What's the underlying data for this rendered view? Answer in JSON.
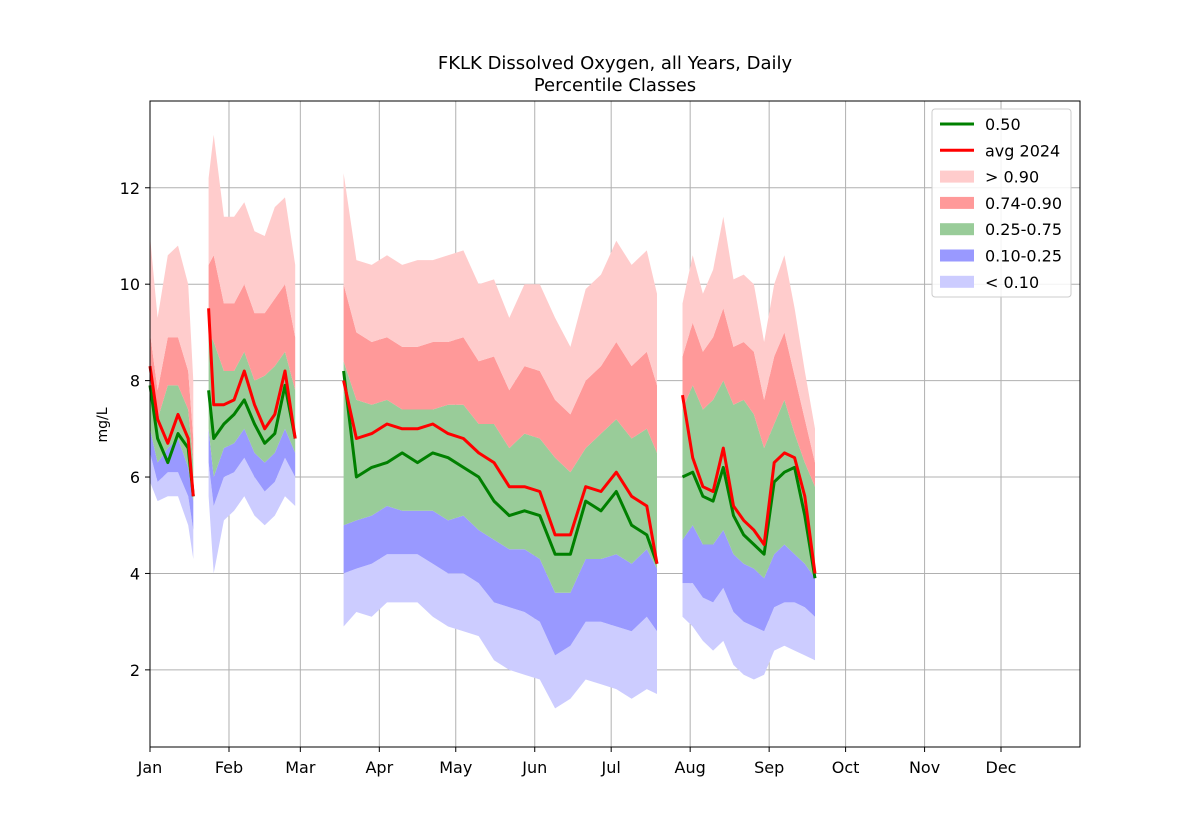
{
  "chart_data": {
    "type": "area",
    "title": "FKLK Dissolved Oxygen, all Years, Daily",
    "subtitle": "Percentile Classes",
    "xlabel": "",
    "ylabel": "mg/L",
    "x_unit": "day of year",
    "xlim": [
      1,
      366
    ],
    "ylim": [
      0.4,
      13.8
    ],
    "x_ticks": [
      {
        "label": "Jan",
        "day": 1
      },
      {
        "label": "Feb",
        "day": 32
      },
      {
        "label": "Mar",
        "day": 60
      },
      {
        "label": "Apr",
        "day": 91
      },
      {
        "label": "May",
        "day": 121
      },
      {
        "label": "Jun",
        "day": 152
      },
      {
        "label": "Jul",
        "day": 182
      },
      {
        "label": "Aug",
        "day": 213
      },
      {
        "label": "Sep",
        "day": 244
      },
      {
        "label": "Oct",
        "day": 274
      },
      {
        "label": "Nov",
        "day": 305
      },
      {
        "label": "Dec",
        "day": 335
      }
    ],
    "y_ticks": [
      2,
      4,
      6,
      8,
      10,
      12
    ],
    "grid": true,
    "legend_position": "top-right",
    "colors": {
      "median": "#008000",
      "avg": "#ff0000",
      "gt90": "#ffcccc",
      "p74_90": "#ff9999",
      "p25_75": "#99cc99",
      "p10_25": "#9999ff",
      "lt10": "#ccccff"
    },
    "legend": [
      {
        "label": "0.50",
        "kind": "line",
        "color_key": "median"
      },
      {
        "label": "avg 2024",
        "kind": "line",
        "color_key": "avg"
      },
      {
        "label": "> 0.90",
        "kind": "patch",
        "color_key": "gt90"
      },
      {
        "label": "0.74-0.90",
        "kind": "patch",
        "color_key": "p74_90"
      },
      {
        "label": "0.25-0.75",
        "kind": "patch",
        "color_key": "p25_75"
      },
      {
        "label": "0.10-0.25",
        "kind": "patch",
        "color_key": "p10_25"
      },
      {
        "label": "< 0.10",
        "kind": "patch",
        "color_key": "lt10"
      }
    ],
    "segments": [
      {
        "x": [
          1,
          4,
          8,
          12,
          16,
          18
        ],
        "max": [
          11.0,
          9.3,
          10.6,
          10.8,
          10.0,
          8.0
        ],
        "p90": [
          9.0,
          7.8,
          8.9,
          8.9,
          8.2,
          6.8
        ],
        "p75": [
          8.1,
          7.2,
          7.9,
          7.9,
          7.4,
          6.3
        ],
        "p25": [
          7.0,
          6.3,
          6.6,
          6.8,
          6.2,
          5.5
        ],
        "p10": [
          6.5,
          5.9,
          6.1,
          6.1,
          5.6,
          4.9
        ],
        "min": [
          5.9,
          5.5,
          5.6,
          5.6,
          5.0,
          4.3
        ],
        "median": [
          7.9,
          6.8,
          6.3,
          6.9,
          6.6,
          5.6
        ],
        "avg": [
          8.3,
          7.2,
          6.7,
          7.3,
          6.8,
          5.6
        ]
      },
      {
        "x": [
          24,
          26,
          30,
          34,
          38,
          42,
          46,
          50,
          54,
          58
        ],
        "max": [
          12.2,
          13.1,
          11.4,
          11.4,
          11.7,
          11.1,
          11.0,
          11.6,
          11.8,
          10.4
        ],
        "p90": [
          10.4,
          10.6,
          9.6,
          9.6,
          10.0,
          9.4,
          9.4,
          9.7,
          10.0,
          8.9
        ],
        "p75": [
          9.0,
          8.8,
          8.2,
          8.2,
          8.6,
          8.0,
          8.1,
          8.3,
          8.6,
          7.8
        ],
        "p25": [
          7.0,
          6.0,
          6.6,
          6.7,
          7.0,
          6.5,
          6.3,
          6.5,
          7.0,
          6.5
        ],
        "p10": [
          6.3,
          5.4,
          6.0,
          6.1,
          6.4,
          6.0,
          5.7,
          5.9,
          6.4,
          6.0
        ],
        "min": [
          5.6,
          4.0,
          5.1,
          5.3,
          5.6,
          5.2,
          5.0,
          5.2,
          5.6,
          5.4
        ],
        "median": [
          7.8,
          6.8,
          7.1,
          7.3,
          7.6,
          7.1,
          6.7,
          6.9,
          7.9,
          6.8
        ],
        "avg": [
          9.5,
          7.5,
          7.5,
          7.6,
          8.2,
          7.5,
          7.0,
          7.3,
          8.2,
          6.8
        ]
      },
      {
        "x": [
          77,
          82,
          88,
          94,
          100,
          106,
          112,
          118,
          124,
          130,
          136,
          142,
          148,
          154,
          160,
          166,
          172,
          178,
          184,
          190,
          196,
          200
        ],
        "max": [
          12.3,
          10.5,
          10.4,
          10.6,
          10.4,
          10.5,
          10.5,
          10.6,
          10.7,
          10.0,
          10.1,
          9.3,
          10.0,
          10.0,
          9.3,
          8.7,
          9.9,
          10.2,
          10.9,
          10.4,
          10.7,
          9.8
        ],
        "p90": [
          10.0,
          9.0,
          8.8,
          8.9,
          8.7,
          8.7,
          8.8,
          8.8,
          8.9,
          8.4,
          8.5,
          7.8,
          8.3,
          8.2,
          7.6,
          7.3,
          8.0,
          8.3,
          8.8,
          8.3,
          8.6,
          7.9
        ],
        "p75": [
          8.4,
          7.6,
          7.5,
          7.6,
          7.4,
          7.4,
          7.4,
          7.5,
          7.5,
          7.1,
          7.1,
          6.6,
          6.9,
          6.8,
          6.4,
          6.1,
          6.6,
          6.9,
          7.2,
          6.8,
          7.0,
          6.5
        ],
        "p25": [
          5.0,
          5.1,
          5.2,
          5.4,
          5.3,
          5.3,
          5.3,
          5.1,
          5.2,
          4.9,
          4.7,
          4.5,
          4.5,
          4.3,
          3.6,
          3.6,
          4.3,
          4.3,
          4.4,
          4.2,
          4.5,
          4.1
        ],
        "p10": [
          4.0,
          4.1,
          4.2,
          4.4,
          4.4,
          4.4,
          4.2,
          4.0,
          4.0,
          3.8,
          3.4,
          3.3,
          3.2,
          3.0,
          2.3,
          2.5,
          3.0,
          3.0,
          2.9,
          2.8,
          3.1,
          2.8
        ],
        "min": [
          2.9,
          3.2,
          3.1,
          3.4,
          3.4,
          3.4,
          3.1,
          2.9,
          2.8,
          2.7,
          2.2,
          2.0,
          1.9,
          1.8,
          1.2,
          1.4,
          1.8,
          1.7,
          1.6,
          1.4,
          1.6,
          1.5
        ],
        "median": [
          8.2,
          6.0,
          6.2,
          6.3,
          6.5,
          6.3,
          6.5,
          6.4,
          6.2,
          6.0,
          5.5,
          5.2,
          5.3,
          5.2,
          4.4,
          4.4,
          5.5,
          5.3,
          5.7,
          5.0,
          4.8,
          4.2
        ],
        "avg": [
          8.0,
          6.8,
          6.9,
          7.1,
          7.0,
          7.0,
          7.1,
          6.9,
          6.8,
          6.5,
          6.3,
          5.8,
          5.8,
          5.7,
          4.8,
          4.8,
          5.8,
          5.7,
          6.1,
          5.6,
          5.4,
          4.2
        ]
      },
      {
        "x": [
          210,
          214,
          218,
          222,
          226,
          230,
          234,
          238,
          242,
          246,
          250,
          254,
          258,
          262
        ],
        "max": [
          9.6,
          10.6,
          9.8,
          10.3,
          11.4,
          10.1,
          10.2,
          10.0,
          8.8,
          10.0,
          10.6,
          9.5,
          8.2,
          7.0
        ],
        "p90": [
          8.5,
          9.2,
          8.6,
          8.9,
          9.5,
          8.7,
          8.8,
          8.6,
          7.6,
          8.5,
          9.0,
          8.1,
          7.2,
          6.3
        ],
        "p75": [
          7.4,
          7.9,
          7.4,
          7.6,
          8.0,
          7.5,
          7.6,
          7.3,
          6.6,
          7.1,
          7.6,
          6.9,
          6.3,
          5.8
        ],
        "p25": [
          4.7,
          5.0,
          4.6,
          4.6,
          4.9,
          4.4,
          4.2,
          4.1,
          3.9,
          4.4,
          4.6,
          4.4,
          4.2,
          3.9
        ],
        "p10": [
          3.8,
          3.8,
          3.5,
          3.4,
          3.7,
          3.2,
          3.0,
          2.9,
          2.8,
          3.3,
          3.4,
          3.4,
          3.3,
          3.1
        ],
        "min": [
          3.1,
          2.9,
          2.6,
          2.4,
          2.6,
          2.1,
          1.9,
          1.8,
          1.9,
          2.4,
          2.5,
          2.4,
          2.3,
          2.2
        ],
        "median": [
          6.0,
          6.1,
          5.6,
          5.5,
          6.2,
          5.2,
          4.8,
          4.6,
          4.4,
          5.9,
          6.1,
          6.2,
          5.2,
          3.9
        ],
        "avg": [
          7.7,
          6.4,
          5.8,
          5.7,
          6.6,
          5.4,
          5.1,
          4.9,
          4.6,
          6.3,
          6.5,
          6.4,
          5.6,
          4.0
        ]
      }
    ]
  }
}
